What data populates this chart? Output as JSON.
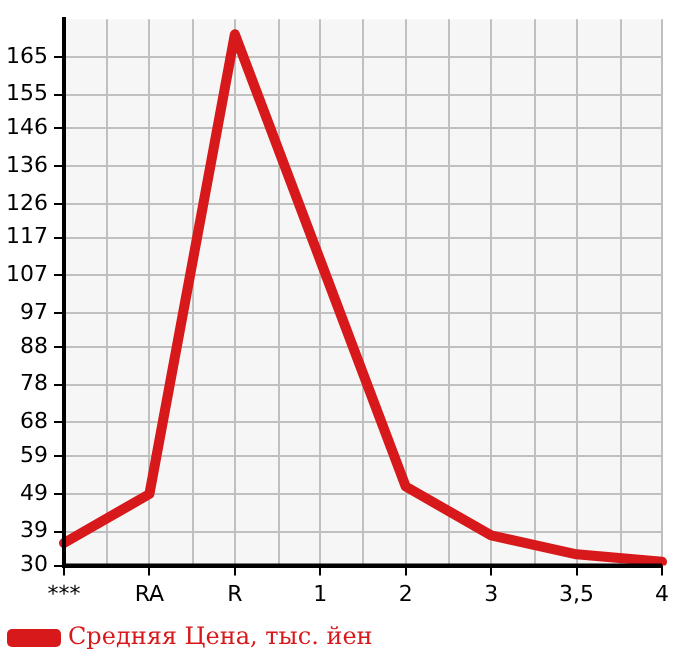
{
  "chart_data": {
    "type": "line",
    "categories": [
      "***",
      "RA",
      "R",
      "1",
      "2",
      "3",
      "3,5",
      "4"
    ],
    "series": [
      {
        "name": "Средняя Цена, тыс. йен",
        "color": "#d7191c",
        "values": [
          36,
          49,
          171,
          111,
          51,
          38,
          33,
          31
        ]
      }
    ],
    "ylim": [
      30,
      175
    ],
    "yticks": [
      30,
      39,
      49,
      59,
      68,
      78,
      88,
      97,
      107,
      117,
      126,
      136,
      146,
      155,
      165
    ],
    "grid": true,
    "legend": "bottom left",
    "marker": "none",
    "line_style": "solid"
  }
}
